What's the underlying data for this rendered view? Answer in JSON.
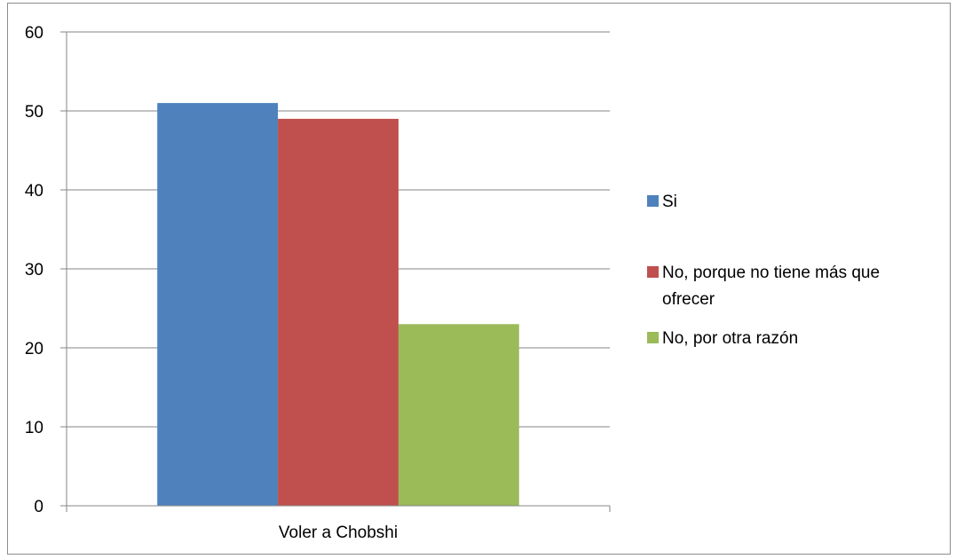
{
  "chart_data": {
    "type": "bar",
    "title": "",
    "xlabel": "",
    "ylabel": "",
    "categories": [
      "Voler a Chobshi"
    ],
    "series": [
      {
        "name": "Si",
        "values": [
          51
        ],
        "color": "#4f81bd"
      },
      {
        "name": "No, porque no tiene más que ofrecer",
        "values": [
          49
        ],
        "color": "#c0504d"
      },
      {
        "name": "No, por otra razón",
        "values": [
          23
        ],
        "color": "#9bbb59"
      }
    ],
    "ylim": [
      0,
      60
    ],
    "yticks": [
      "0",
      "10",
      "20",
      "30",
      "40",
      "50",
      "60"
    ],
    "grid": true,
    "legend_position": "right"
  }
}
